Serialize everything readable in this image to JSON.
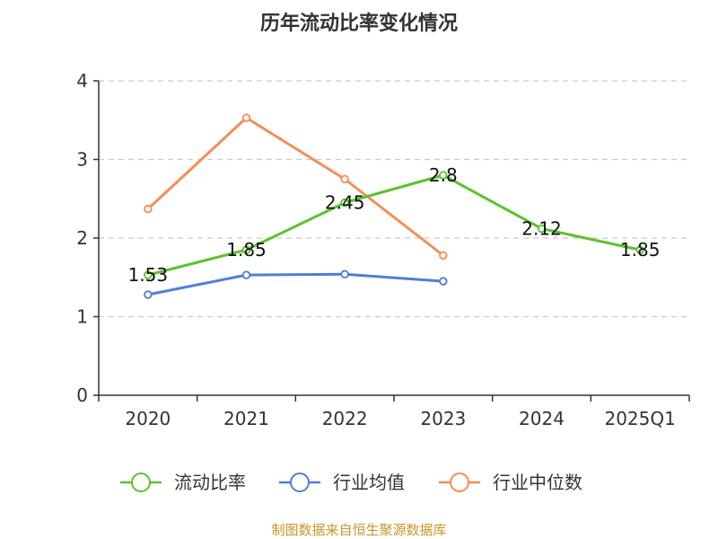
{
  "chart_data": {
    "type": "line",
    "title": "历年流动比率变化情况",
    "categories": [
      "2020",
      "2021",
      "2022",
      "2023",
      "2024",
      "2025Q1"
    ],
    "ylim": [
      0,
      4
    ],
    "yticks": [
      "0",
      "1",
      "2",
      "3",
      "4"
    ],
    "grid": true,
    "legend_position": "bottom",
    "series": [
      {
        "name": "流动比率",
        "color": "#5cc22e",
        "values": [
          1.53,
          1.85,
          2.45,
          2.8,
          2.12,
          1.85
        ],
        "labels": [
          "1.53",
          "1.85",
          "2.45",
          "2.8",
          "2.12",
          "1.85"
        ]
      },
      {
        "name": "行业均值",
        "color": "#4e7fd6",
        "values": [
          1.28,
          1.53,
          1.54,
          1.45,
          null,
          null
        ]
      },
      {
        "name": "行业中位数",
        "color": "#f58e55",
        "values": [
          2.37,
          3.53,
          2.75,
          1.78,
          null,
          null
        ]
      }
    ],
    "source": "制图数据来自恒生聚源数据库",
    "source_color": "#c8962a"
  }
}
